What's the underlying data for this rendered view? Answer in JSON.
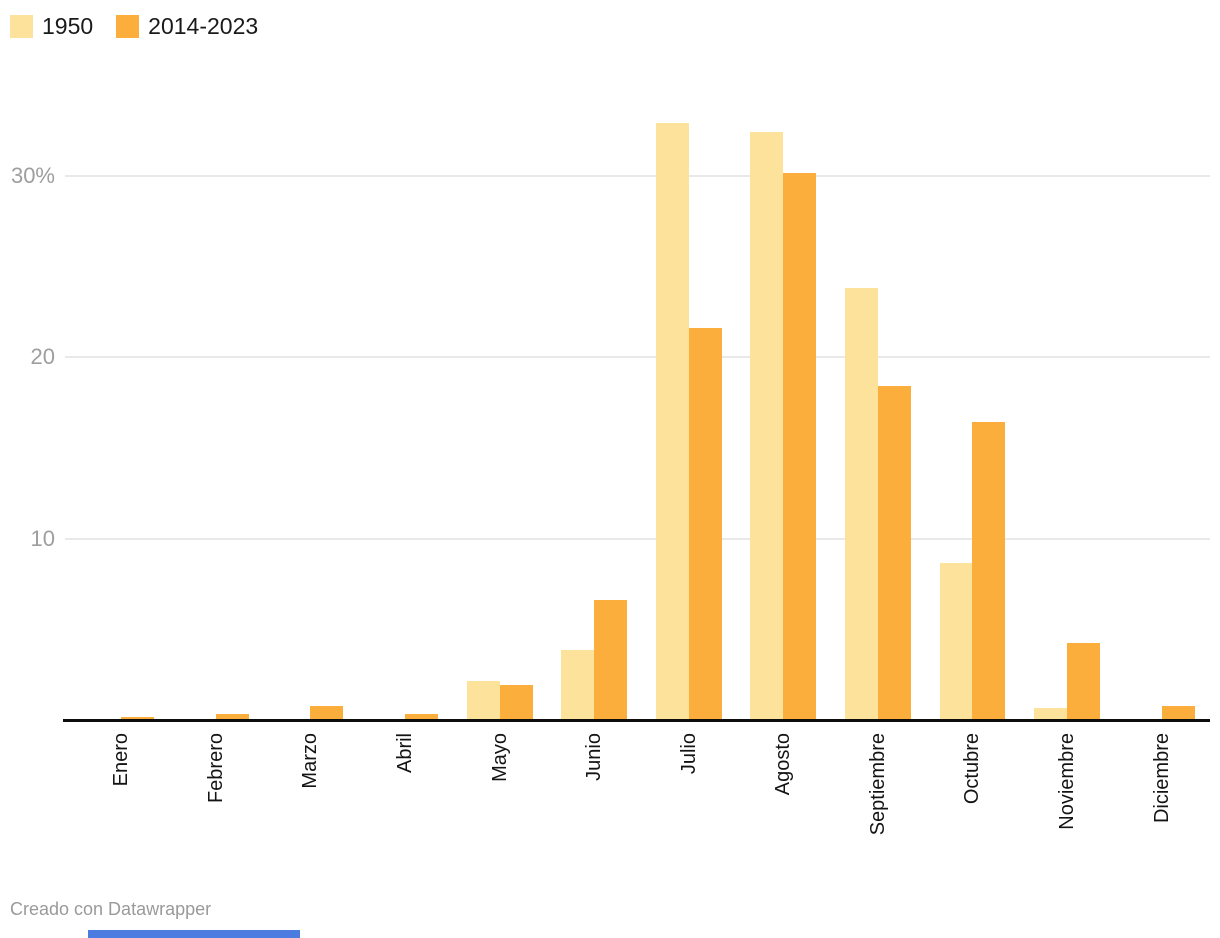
{
  "legend": {
    "items": [
      {
        "label": "1950",
        "color": "#fce29b"
      },
      {
        "label": "2014-2023",
        "color": "#fbae3c"
      }
    ]
  },
  "footer": {
    "credit": "Creado con Datawrapper"
  },
  "colors": {
    "series_1950": "#fce29b",
    "series_2014_2023": "#fbae3c",
    "gridline": "#e9e9e9",
    "axis_line": "#0d0d0d",
    "tick_label": "#9e9e9e",
    "month_label": "#141414",
    "footer_text": "#9a9a9a",
    "scrollbar": "#4d7ce0"
  },
  "chart_data": {
    "type": "bar",
    "categories": [
      "Enero",
      "Febrero",
      "Marzo",
      "Abril",
      "Mayo",
      "Junio",
      "Julio",
      "Agosto",
      "Septiembre",
      "Octubre",
      "Noviembre",
      "Diciembre"
    ],
    "series": [
      {
        "name": "1950",
        "color": "#fce29b",
        "values": [
          0,
          0,
          0.1,
          0,
          2.2,
          3.9,
          33.0,
          32.5,
          23.9,
          8.7,
          0.7,
          0
        ]
      },
      {
        "name": "2014-2023",
        "color": "#fbae3c",
        "values": [
          0.2,
          0.4,
          0.8,
          0.4,
          2.0,
          6.7,
          21.7,
          30.2,
          18.5,
          16.5,
          4.3,
          0.8
        ]
      }
    ],
    "title": "",
    "xlabel": "",
    "ylabel": "",
    "y_unit": "%",
    "y_ticks": [
      {
        "value": 10,
        "label": "10"
      },
      {
        "value": 20,
        "label": "20"
      },
      {
        "value": 30,
        "label": "30%"
      }
    ],
    "ylim": [
      0,
      35.9
    ],
    "grid": true,
    "legend_position": "top-left",
    "x_label_rotation": "vertical-bottom-to-top"
  }
}
